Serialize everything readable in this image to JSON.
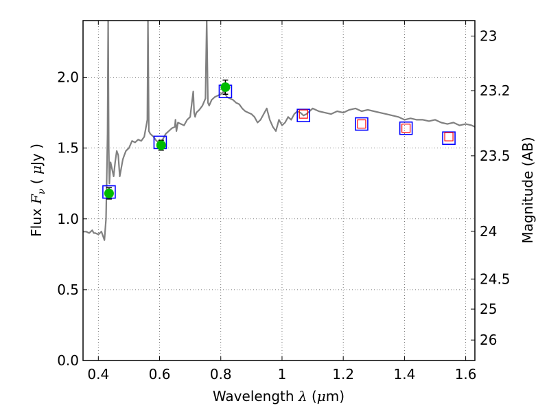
{
  "chart_data": {
    "type": "scatter",
    "xlabel": {
      "prefix": "Wavelength ",
      "symbol": "λ",
      "unit_open": " (",
      "unit_symbol": "μ",
      "unit_rest": "m)"
    },
    "ylabel": {
      "prefix": "Flux ",
      "symbol": "F",
      "subscript": "ν",
      "unit_open": " ( ",
      "unit_symbol": "μ",
      "unit_rest": "Jy )"
    },
    "y2label": "Magnitude (AB)",
    "xlim": [
      0.35,
      1.63
    ],
    "ylim": [
      0.0,
      2.4
    ],
    "grid": true,
    "x_ticks": [
      {
        "value": 0.4,
        "label": "0.4"
      },
      {
        "value": 0.6,
        "label": "0.6"
      },
      {
        "value": 0.8,
        "label": "0.8"
      },
      {
        "value": 1.0,
        "label": "1"
      },
      {
        "value": 1.2,
        "label": "1.2"
      },
      {
        "value": 1.4,
        "label": "1.4"
      },
      {
        "value": 1.6,
        "label": "1.6"
      }
    ],
    "y_ticks": [
      {
        "value": 0.0,
        "label": "0.0"
      },
      {
        "value": 0.5,
        "label": "0.5"
      },
      {
        "value": 1.0,
        "label": "1.0"
      },
      {
        "value": 1.5,
        "label": "1.5"
      },
      {
        "value": 2.0,
        "label": "2.0"
      }
    ],
    "y2_ticks": [
      {
        "value": 23,
        "label": "23"
      },
      {
        "value": 23.2,
        "label": "23.2"
      },
      {
        "value": 23.5,
        "label": "23.5"
      },
      {
        "value": 24,
        "label": "24"
      },
      {
        "value": 24.5,
        "label": "24.5"
      },
      {
        "value": 25,
        "label": "25"
      },
      {
        "value": 26,
        "label": "26"
      }
    ],
    "y2_zero_point_mag": 23.9,
    "colors": {
      "spectrum": "#808080",
      "model_box": "#0000ff",
      "observed": "#00bb00",
      "upper_limit": "#ff0000",
      "grid": "#555555"
    },
    "series": [
      {
        "kind": "line",
        "x": [
          0.35,
          0.36,
          0.37,
          0.38,
          0.385,
          0.39,
          0.4,
          0.41,
          0.415,
          0.42,
          0.425,
          0.43,
          0.432,
          0.434,
          0.436,
          0.44,
          0.445,
          0.45,
          0.455,
          0.46,
          0.465,
          0.47,
          0.48,
          0.485,
          0.49,
          0.5,
          0.51,
          0.52,
          0.53,
          0.54,
          0.55,
          0.56,
          0.562,
          0.565,
          0.57,
          0.58,
          0.59,
          0.6,
          0.61,
          0.62,
          0.63,
          0.64,
          0.65,
          0.652,
          0.655,
          0.66,
          0.67,
          0.68,
          0.69,
          0.7,
          0.71,
          0.713,
          0.716,
          0.72,
          0.73,
          0.74,
          0.75,
          0.754,
          0.758,
          0.762,
          0.77,
          0.78,
          0.79,
          0.8,
          0.81,
          0.82,
          0.83,
          0.84,
          0.85,
          0.86,
          0.87,
          0.88,
          0.89,
          0.9,
          0.91,
          0.92,
          0.93,
          0.94,
          0.95,
          0.96,
          0.97,
          0.98,
          0.99,
          1.0,
          1.01,
          1.02,
          1.03,
          1.04,
          1.05,
          1.06,
          1.07,
          1.08,
          1.09,
          1.1,
          1.12,
          1.14,
          1.16,
          1.18,
          1.2,
          1.22,
          1.24,
          1.26,
          1.28,
          1.3,
          1.32,
          1.34,
          1.36,
          1.38,
          1.4,
          1.42,
          1.44,
          1.46,
          1.48,
          1.5,
          1.52,
          1.54,
          1.56,
          1.58,
          1.6,
          1.62,
          1.63
        ],
        "y": [
          0.91,
          0.91,
          0.9,
          0.92,
          0.9,
          0.9,
          0.89,
          0.91,
          0.88,
          0.85,
          1.0,
          1.6,
          2.4,
          1.5,
          1.25,
          1.4,
          1.35,
          1.3,
          1.4,
          1.48,
          1.45,
          1.3,
          1.42,
          1.45,
          1.48,
          1.5,
          1.55,
          1.54,
          1.56,
          1.55,
          1.58,
          1.7,
          2.4,
          1.62,
          1.6,
          1.58,
          1.55,
          1.54,
          1.56,
          1.6,
          1.62,
          1.64,
          1.65,
          1.7,
          1.62,
          1.68,
          1.67,
          1.66,
          1.7,
          1.72,
          1.9,
          1.75,
          1.72,
          1.75,
          1.77,
          1.8,
          1.85,
          2.4,
          1.82,
          1.8,
          1.84,
          1.86,
          1.87,
          1.88,
          1.9,
          1.86,
          1.85,
          1.84,
          1.82,
          1.81,
          1.78,
          1.76,
          1.75,
          1.74,
          1.72,
          1.68,
          1.7,
          1.74,
          1.78,
          1.7,
          1.65,
          1.62,
          1.7,
          1.66,
          1.68,
          1.72,
          1.7,
          1.74,
          1.76,
          1.75,
          1.73,
          1.74,
          1.76,
          1.78,
          1.76,
          1.75,
          1.74,
          1.76,
          1.75,
          1.77,
          1.78,
          1.76,
          1.77,
          1.76,
          1.75,
          1.74,
          1.73,
          1.72,
          1.7,
          1.71,
          1.7,
          1.7,
          1.69,
          1.7,
          1.68,
          1.67,
          1.68,
          1.66,
          1.67,
          1.66,
          1.65
        ]
      },
      {
        "kind": "model_boxes",
        "x": [
          0.435,
          0.602,
          0.815,
          1.07,
          1.26,
          1.405,
          1.545
        ],
        "y": [
          1.19,
          1.54,
          1.9,
          1.73,
          1.67,
          1.64,
          1.57
        ]
      },
      {
        "kind": "observed_points",
        "x": [
          0.435,
          0.605,
          0.815
        ],
        "y": [
          1.18,
          1.52,
          1.93
        ],
        "yerr": [
          0.04,
          0.035,
          0.05
        ]
      },
      {
        "kind": "upper_limits",
        "x": [
          1.07,
          1.26,
          1.405,
          1.545
        ],
        "y": [
          1.74,
          1.67,
          1.64,
          1.58
        ]
      }
    ]
  }
}
